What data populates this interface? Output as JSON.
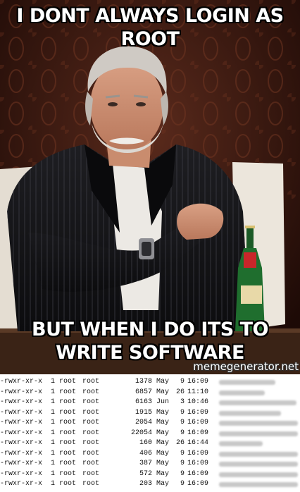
{
  "meme": {
    "top_caption": "I DONT ALWAYS LOGIN AS ROOT",
    "bottom_caption": "BUT WHEN I DO ITS TO WRITE SOFTWARE",
    "watermark": "memegenerator.net"
  },
  "listing": {
    "rows": [
      {
        "perms": "-rwxr-xr-x",
        "links": "1",
        "owner": "root",
        "group": "root",
        "size": "1378",
        "month": "May",
        "day": "9",
        "time": "16:09"
      },
      {
        "perms": "-rwxr-xr-x",
        "links": "1",
        "owner": "root",
        "group": "root",
        "size": "6857",
        "month": "May",
        "day": "26",
        "time": "11:10"
      },
      {
        "perms": "-rwxr-xr-x",
        "links": "1",
        "owner": "root",
        "group": "root",
        "size": "6163",
        "month": "Jun",
        "day": "3",
        "time": "10:46"
      },
      {
        "perms": "-rwxr-xr-x",
        "links": "1",
        "owner": "root",
        "group": "root",
        "size": "1915",
        "month": "May",
        "day": "9",
        "time": "16:09"
      },
      {
        "perms": "-rwxr-xr-x",
        "links": "1",
        "owner": "root",
        "group": "root",
        "size": "2054",
        "month": "May",
        "day": "9",
        "time": "16:09"
      },
      {
        "perms": "-rwxr-xr-x",
        "links": "1",
        "owner": "root",
        "group": "root",
        "size": "22054",
        "month": "May",
        "day": "9",
        "time": "16:09"
      },
      {
        "perms": "-rwxr-xr-x",
        "links": "1",
        "owner": "root",
        "group": "root",
        "size": "160",
        "month": "May",
        "day": "26",
        "time": "16:44"
      },
      {
        "perms": "-rwxr-xr-x",
        "links": "1",
        "owner": "root",
        "group": "root",
        "size": "406",
        "month": "May",
        "day": "9",
        "time": "16:09"
      },
      {
        "perms": "-rwxr-xr-x",
        "links": "1",
        "owner": "root",
        "group": "root",
        "size": "387",
        "month": "May",
        "day": "9",
        "time": "16:09"
      },
      {
        "perms": "-rwxr-xr-x",
        "links": "1",
        "owner": "root",
        "group": "root",
        "size": "572",
        "month": "May",
        "day": "9",
        "time": "16:09"
      },
      {
        "perms": "-rwxr-xr-x",
        "links": "1",
        "owner": "root",
        "group": "root",
        "size": "203",
        "month": "May",
        "day": "9",
        "time": "16:09"
      }
    ]
  }
}
